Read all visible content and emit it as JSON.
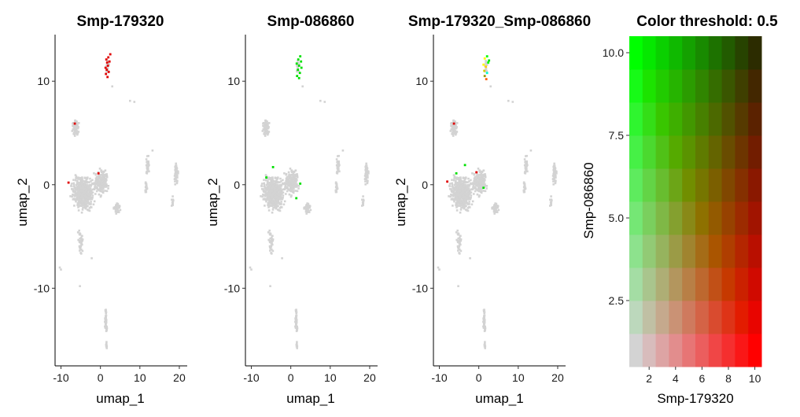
{
  "chart_data": [
    {
      "type": "scatter",
      "title": "Smp-179320",
      "xlabel": "umap_1",
      "ylabel": "umap_2",
      "xlim": [
        -11.5,
        22
      ],
      "ylim": [
        -17.5,
        14.5
      ],
      "xticks": [
        -10,
        0,
        10,
        20
      ],
      "yticks": [
        -10,
        0,
        10
      ],
      "xtick_labels": [
        "-10",
        "0",
        "10",
        "20"
      ],
      "ytick_labels": [
        "-10",
        "0",
        "10"
      ],
      "grid": false,
      "background_color": "#d3d3d3",
      "highlight_color": "#e00000",
      "highlight_points": [
        [
          1.5,
          12.1
        ],
        [
          2,
          12.3
        ],
        [
          2.3,
          11.9
        ],
        [
          1.9,
          11.5
        ],
        [
          1.6,
          11.1
        ],
        [
          2.1,
          10.9
        ],
        [
          1.4,
          10.7
        ],
        [
          1.8,
          10.4
        ],
        [
          1.3,
          11.3
        ],
        [
          2.5,
          12.6
        ],
        [
          1.7,
          11.8
        ],
        [
          -6.5,
          5.9
        ],
        [
          -8.1,
          0.2
        ],
        [
          -0.5,
          1.1
        ]
      ]
    },
    {
      "type": "scatter",
      "title": "Smp-086860",
      "xlabel": "umap_1",
      "ylabel": "umap_2",
      "xlim": [
        -11.5,
        22
      ],
      "ylim": [
        -17.5,
        14.5
      ],
      "xticks": [
        -10,
        0,
        10,
        20
      ],
      "yticks": [
        -10,
        0,
        10
      ],
      "xtick_labels": [
        "-10",
        "0",
        "10",
        "20"
      ],
      "ytick_labels": [
        "-10",
        "0",
        "10"
      ],
      "grid": false,
      "background_color": "#d3d3d3",
      "highlight_color": "#00e000",
      "highlight_points": [
        [
          1.9,
          12.1
        ],
        [
          2.4,
          12.4
        ],
        [
          2.6,
          11.9
        ],
        [
          2.1,
          11.5
        ],
        [
          1.8,
          11.1
        ],
        [
          2.3,
          10.8
        ],
        [
          1.6,
          10.5
        ],
        [
          2.1,
          10.3
        ],
        [
          2.7,
          11.3
        ],
        [
          1.5,
          11.7
        ],
        [
          -4.5,
          1.7
        ],
        [
          2.4,
          0.1
        ],
        [
          -6.2,
          0.7
        ],
        [
          1.4,
          -1.3
        ]
      ]
    },
    {
      "type": "scatter",
      "title": "Smp-179320_Smp-086860",
      "xlabel": "umap_1",
      "ylabel": "umap_2",
      "xlim": [
        -11.5,
        22
      ],
      "ylim": [
        -17.5,
        14.5
      ],
      "xticks": [
        -10,
        0,
        10,
        20
      ],
      "yticks": [
        -10,
        0,
        10
      ],
      "xtick_labels": [
        "-10",
        "0",
        "10",
        "20"
      ],
      "ytick_labels": [
        "-10",
        "0",
        "10"
      ],
      "grid": false,
      "background_color": "#d3d3d3",
      "highlight_points": [
        [
          1.5,
          12.2,
          "#ffff00"
        ],
        [
          2.1,
          12.4,
          "#00ff00"
        ],
        [
          2.4,
          11.8,
          "#00ff00"
        ],
        [
          1.8,
          11.4,
          "#ffd000"
        ],
        [
          1.4,
          11.0,
          "#d0d000"
        ],
        [
          2.1,
          10.8,
          "#00ffd0"
        ],
        [
          1.5,
          10.5,
          "#9a9a00"
        ],
        [
          1.9,
          10.2,
          "#ff6000"
        ],
        [
          1.2,
          11.6,
          "#ffff00"
        ],
        [
          2.6,
          12.0,
          "#00e000"
        ],
        [
          -6.3,
          5.9,
          "#e00000"
        ],
        [
          -8.0,
          0.3,
          "#e00000"
        ],
        [
          -3.5,
          1.9,
          "#00e000"
        ],
        [
          -5.7,
          1.1,
          "#00e000"
        ],
        [
          -0.6,
          1.2,
          "#e00000"
        ],
        [
          1.2,
          -0.3,
          "#00e000"
        ]
      ]
    },
    {
      "type": "heatmap",
      "title": "Color threshold: 0.5",
      "xlabel": "Smp-179320",
      "ylabel": "Smp-086860",
      "xlim": [
        0.5,
        10.5
      ],
      "ylim": [
        0.5,
        10.5
      ],
      "xticks": [
        2,
        4,
        6,
        8,
        10
      ],
      "yticks": [
        2.5,
        5.0,
        7.5,
        10.0
      ],
      "xtick_labels": [
        "2",
        "4",
        "6",
        "8",
        "10"
      ],
      "ytick_labels": [
        "2.5",
        "5.0",
        "7.5",
        "10.0"
      ],
      "grid": false,
      "bins_x": 10,
      "bins_y": 10,
      "low_color": "#d3d3d3",
      "x_color": "#ff0000",
      "y_color": "#00ff00"
    }
  ]
}
